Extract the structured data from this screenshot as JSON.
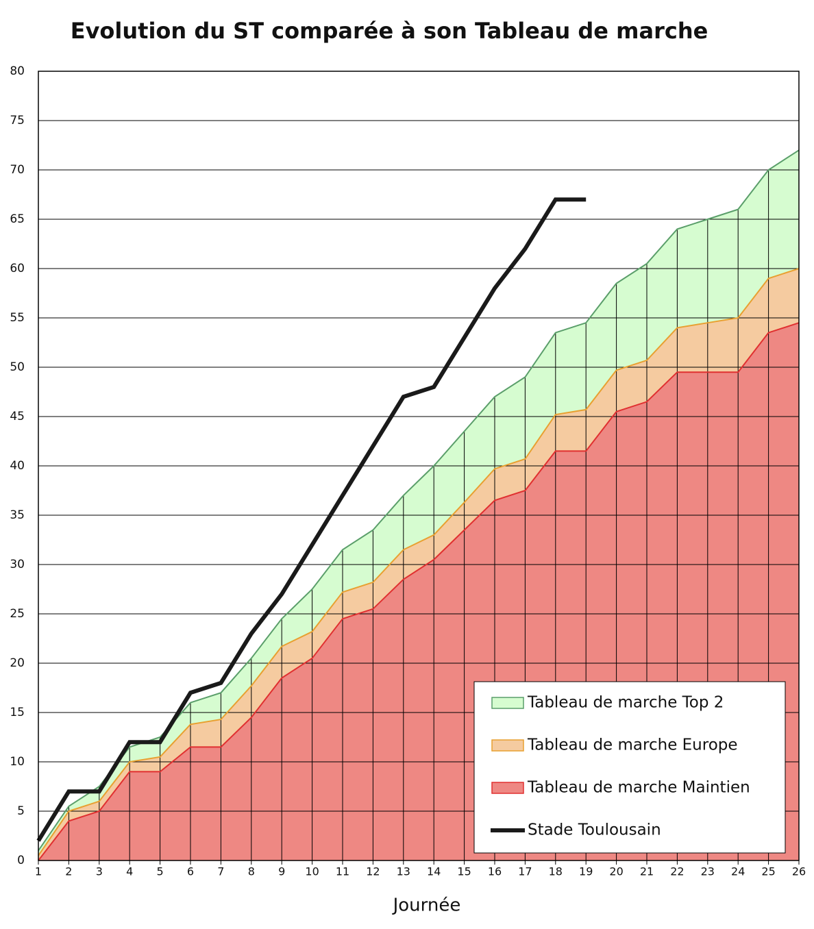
{
  "chart_data": {
    "type": "area",
    "title": "Evolution du ST comparée à son Tableau de marche",
    "x_label": "Journée",
    "x": [
      1,
      2,
      3,
      4,
      5,
      6,
      7,
      8,
      9,
      10,
      11,
      12,
      13,
      14,
      15,
      16,
      17,
      18,
      19,
      20,
      21,
      22,
      23,
      24,
      25,
      26
    ],
    "xlim": [
      1,
      26
    ],
    "xticks": [
      1,
      2,
      3,
      4,
      5,
      6,
      7,
      8,
      9,
      10,
      11,
      12,
      13,
      14,
      15,
      16,
      17,
      18,
      19,
      20,
      21,
      22,
      23,
      24,
      25,
      26
    ],
    "ylim": [
      0,
      80
    ],
    "yticks": [
      0,
      5,
      10,
      15,
      20,
      25,
      30,
      35,
      40,
      45,
      50,
      55,
      60,
      65,
      70,
      75,
      80
    ],
    "grid": true,
    "legend": "lower right",
    "series": [
      {
        "name": "Tableau de marche Top 2",
        "type": "area",
        "color": "#5a9e6a",
        "fill": "#d6fcd0",
        "values": [
          1,
          5.5,
          7.5,
          11.5,
          12.5,
          16,
          17,
          20.5,
          24.5,
          27.5,
          31.5,
          33.5,
          37,
          40,
          43.5,
          47,
          49,
          53.5,
          54.5,
          58.5,
          60.5,
          64,
          65,
          66,
          70,
          72
        ]
      },
      {
        "name": "Tableau de marche Europe",
        "type": "area",
        "color": "#e8a030",
        "fill": "#f5cba0",
        "values": [
          0.5,
          5,
          6,
          10,
          10.5,
          13.8,
          14.3,
          17.7,
          21.7,
          23.2,
          27.2,
          28.2,
          31.5,
          33,
          36.3,
          39.7,
          40.7,
          45.2,
          45.7,
          49.7,
          50.7,
          54,
          54.5,
          55,
          59,
          60
        ]
      },
      {
        "name": "Tableau de marche Maintien",
        "type": "area",
        "color": "#e03030",
        "fill": "#ee8883",
        "values": [
          0,
          4,
          5,
          9,
          9,
          11.5,
          11.5,
          14.5,
          18.5,
          20.5,
          24.5,
          25.5,
          28.5,
          30.5,
          33.5,
          36.5,
          37.5,
          41.5,
          41.5,
          45.5,
          46.5,
          49.5,
          49.5,
          49.5,
          53.5,
          54.5
        ]
      },
      {
        "name": "Stade Toulousain",
        "type": "line",
        "color": "#1a1a1a",
        "values": [
          2,
          7,
          7,
          12,
          12,
          17,
          18,
          23,
          27,
          32,
          37,
          42,
          47,
          48,
          53,
          58,
          62,
          67,
          67,
          null,
          null,
          null,
          null,
          null,
          null,
          null
        ]
      }
    ]
  }
}
